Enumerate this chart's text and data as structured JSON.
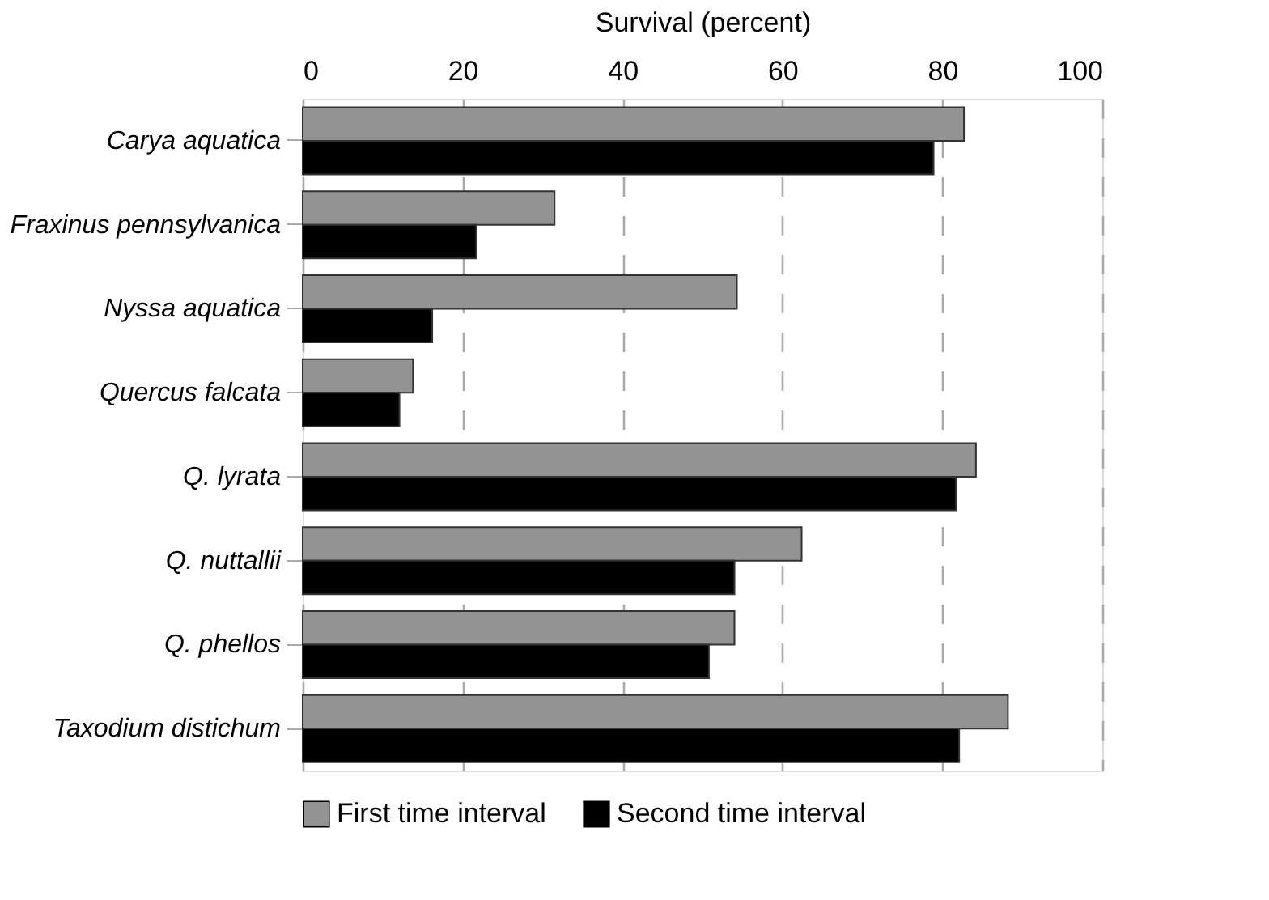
{
  "chart_data": {
    "type": "bar",
    "orientation": "horizontal",
    "xlabel": "Survival (percent)",
    "categories": [
      "Carya aquatica",
      "Fraxinus pennsylvanica",
      "Nyssa aquatica",
      "Quercus falcata",
      "Q. lyrata",
      "Q. nuttallii",
      "Q. phellos",
      "Taxodium distichum"
    ],
    "series": [
      {
        "name": "First time interval",
        "color": "#939393",
        "values": [
          82.7,
          31.5,
          54.3,
          13.8,
          84.2,
          62.4,
          54.0,
          88.2
        ]
      },
      {
        "name": "Second time interval",
        "color": "#000000",
        "values": [
          78.9,
          21.7,
          16.2,
          12.1,
          81.7,
          54.0,
          50.8,
          82.1
        ]
      }
    ],
    "xlim": [
      0,
      100
    ],
    "xticks": [
      0,
      20,
      40,
      60,
      80,
      100
    ],
    "grid": "x",
    "legend": "bottom"
  }
}
